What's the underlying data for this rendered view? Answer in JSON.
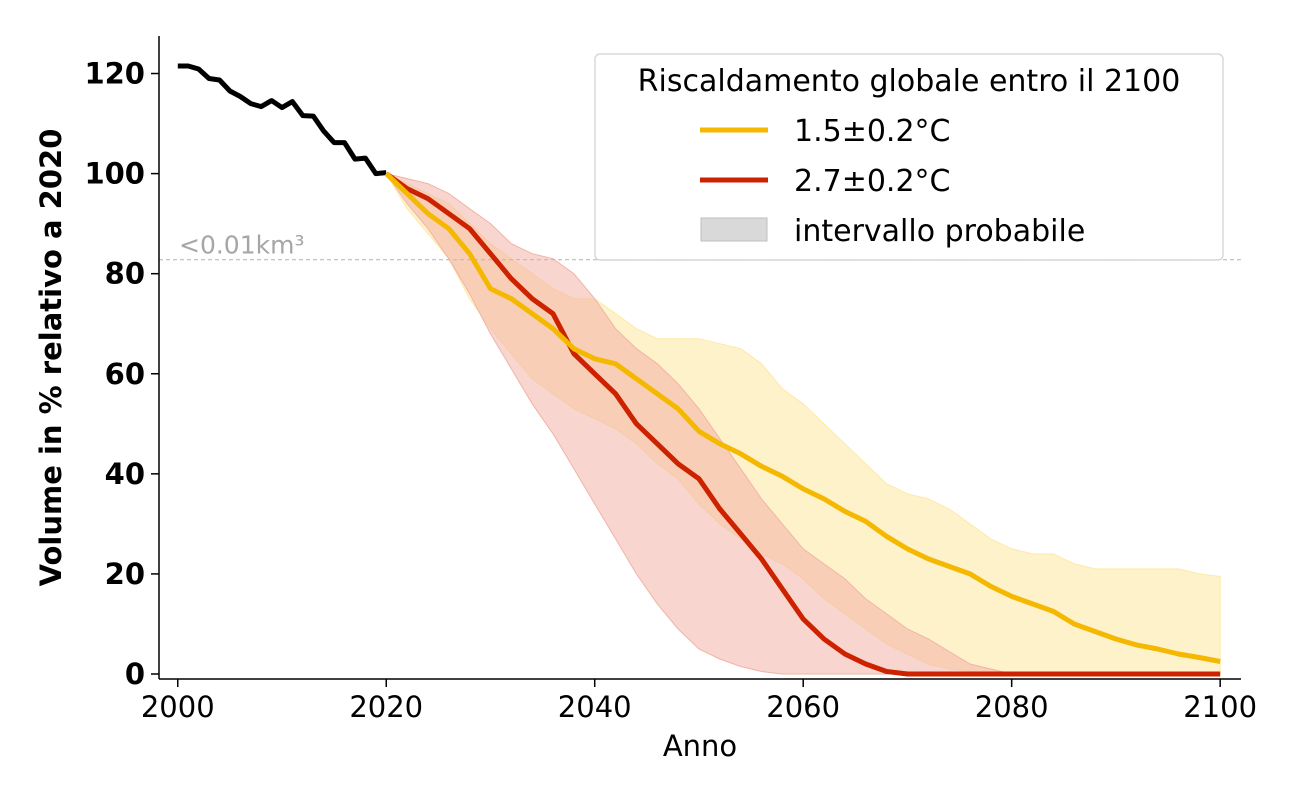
{
  "chart_data": {
    "type": "line",
    "xlabel": "Anno",
    "ylabel": "Volume in % relativo a 2020",
    "xlim": [
      1998.2,
      2102
    ],
    "ylim": [
      -1,
      127.5
    ],
    "xticks": [
      2000,
      2020,
      2040,
      2060,
      2080,
      2100
    ],
    "yticks": [
      0,
      20,
      40,
      60,
      80,
      100,
      120
    ],
    "grid": false,
    "legend": {
      "title": "Riscaldamento globale entro il 2100",
      "placement": "top-right",
      "range_label": "intervallo probabile",
      "range_color": "#d9d9d9"
    },
    "reference_line": {
      "y": 82.8,
      "label": "<0.01km³",
      "color": "#bbbbbb"
    },
    "historical": {
      "color": "#000000",
      "x": [
        2000,
        2001,
        2002,
        2003,
        2004,
        2005,
        2006,
        2007,
        2008,
        2009,
        2010,
        2011,
        2012,
        2013,
        2014,
        2015,
        2016,
        2017,
        2018,
        2019,
        2020
      ],
      "values": [
        121.5,
        121.5,
        120.9,
        119,
        118.7,
        116.5,
        115.4,
        114,
        113.4,
        114.6,
        113.2,
        114.4,
        111.6,
        111.5,
        108.5,
        106.2,
        106.2,
        102.9,
        103.1,
        100,
        100.2
      ]
    },
    "series": [
      {
        "name": "1.5±0.2°C",
        "color": "#f5b800",
        "band_color": "#fde9a8",
        "x": [
          2020,
          2022,
          2024,
          2026,
          2028,
          2030,
          2032,
          2034,
          2036,
          2038,
          2040,
          2042,
          2044,
          2046,
          2048,
          2050,
          2052,
          2054,
          2056,
          2058,
          2060,
          2062,
          2064,
          2066,
          2068,
          2070,
          2072,
          2074,
          2076,
          2078,
          2080,
          2082,
          2084,
          2086,
          2088,
          2090,
          2092,
          2094,
          2096,
          2098,
          2100
        ],
        "values": [
          100,
          96,
          92,
          89,
          84,
          77,
          75,
          72,
          69,
          65,
          63,
          62,
          59,
          56,
          53,
          48.5,
          46,
          44,
          41.5,
          39.5,
          37,
          35,
          32.5,
          30.5,
          27.5,
          25,
          23,
          21.5,
          20,
          17.5,
          15.5,
          14,
          12.5,
          10,
          8.5,
          7,
          5.8,
          5,
          4,
          3.3,
          2.5
        ],
        "lower": [
          100,
          93,
          88,
          83,
          75,
          69,
          64,
          59,
          56,
          53,
          51,
          49,
          46,
          42,
          39,
          34,
          30,
          27,
          24,
          22,
          19,
          15,
          12,
          9,
          6,
          4,
          2,
          1,
          0.5,
          0,
          0,
          0,
          0,
          0,
          0,
          0,
          0,
          0,
          0,
          0,
          0
        ],
        "upper": [
          100,
          98,
          96,
          94,
          90,
          86,
          83,
          80,
          77,
          75,
          75,
          72,
          69,
          67,
          67,
          67,
          66,
          65,
          62,
          57,
          54,
          50,
          46,
          42,
          38,
          36,
          35,
          33,
          30,
          27,
          25,
          24,
          24,
          22,
          21,
          21,
          21,
          21,
          21,
          20,
          19.5
        ]
      },
      {
        "name": "2.7±0.2°C",
        "color": "#cc2200",
        "band_color": "#f2b3a6",
        "x": [
          2020,
          2022,
          2024,
          2026,
          2028,
          2030,
          2032,
          2034,
          2036,
          2038,
          2040,
          2042,
          2044,
          2046,
          2048,
          2050,
          2052,
          2054,
          2056,
          2058,
          2060,
          2062,
          2064,
          2066,
          2068,
          2070,
          2072,
          2074,
          2076,
          2078,
          2080,
          2082,
          2084,
          2086,
          2088,
          2090,
          2092,
          2094,
          2096,
          2098,
          2100
        ],
        "values": [
          100,
          97,
          95,
          92,
          89,
          84,
          79,
          75,
          72,
          64,
          60,
          56,
          50,
          46,
          42,
          39,
          33,
          28,
          23,
          17,
          11,
          7,
          4,
          2,
          0.5,
          0,
          0,
          0,
          0,
          0,
          0,
          0,
          0,
          0,
          0,
          0,
          0,
          0,
          0,
          0,
          0
        ],
        "lower": [
          100,
          94,
          89,
          83,
          76,
          68,
          61,
          54,
          48,
          41,
          34,
          27,
          20,
          14,
          9,
          5,
          3,
          1.5,
          0.5,
          0,
          0,
          0,
          0,
          0,
          0,
          0,
          0,
          0,
          0,
          0,
          0,
          0,
          0,
          0,
          0,
          0,
          0,
          0,
          0,
          0,
          0
        ],
        "upper": [
          100,
          99,
          98,
          96,
          93,
          90,
          86,
          84,
          83,
          80,
          75,
          69,
          65,
          62,
          58,
          53,
          47,
          41,
          35,
          30,
          25,
          22,
          19,
          15,
          12,
          9,
          7,
          4.5,
          2,
          1,
          0,
          0,
          0,
          0,
          0,
          0,
          0,
          0,
          0,
          0,
          0
        ]
      }
    ]
  }
}
